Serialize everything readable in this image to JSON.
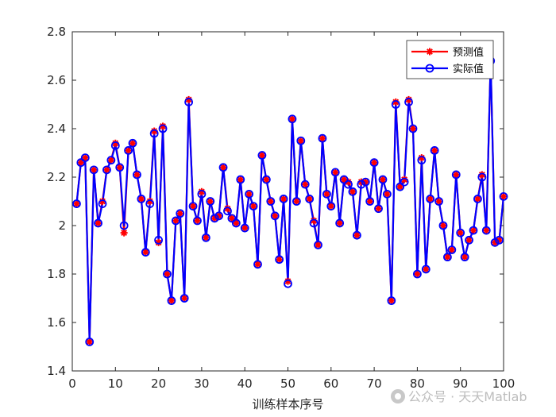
{
  "chart_data": {
    "type": "line",
    "xlabel": "训练样本序号",
    "xlim": [
      0,
      100
    ],
    "ylim": [
      1.4,
      2.8
    ],
    "xticks": [
      0,
      10,
      20,
      30,
      40,
      50,
      60,
      70,
      80,
      90,
      100
    ],
    "yticks": [
      1.4,
      1.6,
      1.8,
      2,
      2.2,
      2.4,
      2.6,
      2.8
    ],
    "xtick_labels": [
      "0",
      "10",
      "20",
      "30",
      "40",
      "50",
      "60",
      "70",
      "80",
      "90",
      "100"
    ],
    "ytick_labels": [
      "1.4",
      "1.6",
      "1.8",
      "2",
      "2.2",
      "2.4",
      "2.6",
      "2.8"
    ],
    "grid": false,
    "legend_position": "top-right",
    "x": [
      1,
      2,
      3,
      4,
      5,
      6,
      7,
      8,
      9,
      10,
      11,
      12,
      13,
      14,
      15,
      16,
      17,
      18,
      19,
      20,
      21,
      22,
      23,
      24,
      25,
      26,
      27,
      28,
      29,
      30,
      31,
      32,
      33,
      34,
      35,
      36,
      37,
      38,
      39,
      40,
      41,
      42,
      43,
      44,
      45,
      46,
      47,
      48,
      49,
      50,
      51,
      52,
      53,
      54,
      55,
      56,
      57,
      58,
      59,
      60,
      61,
      62,
      63,
      64,
      65,
      66,
      67,
      68,
      69,
      70,
      71,
      72,
      73,
      74,
      75,
      76,
      77,
      78,
      79,
      80,
      81,
      82,
      83,
      84,
      85,
      86,
      87,
      88,
      89,
      90,
      91,
      92,
      93,
      94,
      95,
      96,
      97,
      98,
      99,
      100
    ],
    "series": [
      {
        "name": "预测值",
        "color": "#ff0000",
        "marker": "asterisk",
        "values": [
          2.09,
          2.26,
          2.28,
          1.52,
          2.23,
          2.01,
          2.1,
          2.23,
          2.27,
          2.34,
          2.24,
          1.97,
          2.31,
          2.34,
          2.21,
          2.11,
          1.89,
          2.1,
          2.39,
          1.93,
          2.41,
          1.8,
          1.69,
          2.02,
          2.05,
          1.7,
          2.52,
          2.08,
          2.02,
          2.14,
          1.95,
          2.1,
          2.03,
          2.04,
          2.24,
          2.07,
          2.03,
          2.01,
          2.19,
          1.99,
          2.13,
          2.08,
          1.84,
          2.29,
          2.19,
          2.1,
          2.04,
          1.86,
          2.11,
          1.77,
          2.44,
          2.1,
          2.35,
          2.17,
          2.11,
          2.02,
          1.92,
          2.36,
          2.13,
          2.08,
          2.22,
          2.01,
          2.19,
          2.18,
          2.14,
          1.96,
          2.18,
          2.18,
          2.1,
          2.26,
          2.07,
          2.19,
          2.13,
          1.69,
          2.51,
          2.16,
          2.19,
          2.52,
          2.4,
          1.8,
          2.28,
          1.82,
          2.11,
          2.31,
          2.1,
          2.0,
          1.87,
          1.9,
          2.21,
          1.97,
          1.87,
          1.94,
          1.98,
          2.11,
          2.21,
          1.98,
          2.68,
          1.93,
          1.94,
          2.12
        ]
      },
      {
        "name": "实际值",
        "color": "#0000ff",
        "marker": "circle",
        "values": [
          2.09,
          2.26,
          2.28,
          1.52,
          2.23,
          2.01,
          2.09,
          2.23,
          2.27,
          2.33,
          2.24,
          2.0,
          2.31,
          2.34,
          2.21,
          2.11,
          1.89,
          2.09,
          2.38,
          1.94,
          2.4,
          1.8,
          1.69,
          2.02,
          2.05,
          1.7,
          2.51,
          2.08,
          2.02,
          2.13,
          1.95,
          2.1,
          2.03,
          2.04,
          2.24,
          2.06,
          2.03,
          2.01,
          2.19,
          1.99,
          2.13,
          2.08,
          1.84,
          2.29,
          2.19,
          2.1,
          2.04,
          1.86,
          2.11,
          1.76,
          2.44,
          2.1,
          2.35,
          2.17,
          2.11,
          2.01,
          1.92,
          2.36,
          2.13,
          2.08,
          2.22,
          2.01,
          2.19,
          2.17,
          2.14,
          1.96,
          2.17,
          2.18,
          2.1,
          2.26,
          2.07,
          2.19,
          2.13,
          1.69,
          2.5,
          2.16,
          2.18,
          2.51,
          2.4,
          1.8,
          2.27,
          1.82,
          2.11,
          2.31,
          2.1,
          2.0,
          1.87,
          1.9,
          2.21,
          1.97,
          1.87,
          1.94,
          1.98,
          2.11,
          2.2,
          1.98,
          2.68,
          1.93,
          1.94,
          2.12
        ]
      }
    ]
  },
  "watermark": {
    "text": "公众号 · 天天Matlab",
    "icon": "wechat-icon"
  }
}
